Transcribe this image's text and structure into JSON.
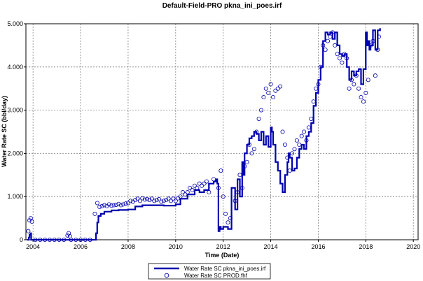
{
  "chart_data": {
    "type": "line",
    "title": "Default-Field-PRO pkna_ini_poes.irf",
    "xlabel": "Time (Date)",
    "ylabel": "Water Rate SC (bbl/day)",
    "xlim": [
      2003.7,
      2020.2
    ],
    "ylim": [
      0,
      5000
    ],
    "x_ticks": [
      2004,
      2006,
      2008,
      2010,
      2012,
      2014,
      2016,
      2018,
      2020
    ],
    "y_ticks": [
      0,
      1000,
      2000,
      3000,
      4000,
      5000
    ],
    "x_tick_labels": [
      "2004",
      "2006",
      "2008",
      "2010",
      "2012",
      "2014",
      "2016",
      "2018",
      "2020"
    ],
    "y_tick_labels": [
      "0",
      "1.000",
      "2.000",
      "3.000",
      "4.000",
      "5.000"
    ],
    "grid": true,
    "legend_position": "bottom-center",
    "series": [
      {
        "name": "Water Rate SC pkna_ini_poes.irf",
        "style": "line",
        "color": "#0000B0",
        "x": [
          2003.75,
          2003.82,
          2003.85,
          2003.9,
          2003.92,
          2004.0,
          2004.2,
          2006.6,
          2006.65,
          2006.7,
          2006.75,
          2006.85,
          2007.0,
          2007.3,
          2007.6,
          2008.0,
          2008.3,
          2008.6,
          2009.0,
          2009.5,
          2010.0,
          2010.2,
          2010.5,
          2010.8,
          2011.0,
          2011.2,
          2011.4,
          2011.6,
          2011.7,
          2011.75,
          2011.8,
          2011.85,
          2011.9,
          2012.0,
          2012.2,
          2012.35,
          2012.5,
          2012.6,
          2012.7,
          2012.8,
          2012.85,
          2012.9,
          2013.0,
          2013.1,
          2013.2,
          2013.3,
          2013.4,
          2013.5,
          2013.6,
          2013.7,
          2013.8,
          2013.9,
          2014.0,
          2014.05,
          2014.1,
          2014.2,
          2014.3,
          2014.4,
          2014.5,
          2014.6,
          2014.7,
          2014.75,
          2014.8,
          2014.9,
          2015.0,
          2015.1,
          2015.2,
          2015.3,
          2015.4,
          2015.5,
          2015.6,
          2015.7,
          2015.8,
          2015.9,
          2016.0,
          2016.1,
          2016.2,
          2016.3,
          2016.4,
          2016.5,
          2016.6,
          2016.7,
          2016.8,
          2016.9,
          2017.0,
          2017.1,
          2017.2,
          2017.3,
          2017.4,
          2017.5,
          2017.6,
          2017.7,
          2017.8,
          2017.9,
          2018.0,
          2018.05,
          2018.1,
          2018.15,
          2018.2,
          2018.3,
          2018.4,
          2018.5,
          2018.6
        ],
        "y": [
          0,
          50,
          120,
          150,
          0,
          0,
          0,
          0,
          150,
          400,
          550,
          600,
          650,
          680,
          690,
          700,
          770,
          800,
          800,
          790,
          820,
          950,
          1050,
          1150,
          1100,
          1150,
          1300,
          1350,
          1400,
          1300,
          200,
          300,
          250,
          300,
          250,
          1200,
          700,
          1400,
          1000,
          1800,
          1500,
          2000,
          2200,
          2350,
          2400,
          2500,
          2450,
          2300,
          2500,
          2200,
          2400,
          2150,
          2600,
          2500,
          2200,
          1800,
          1600,
          1300,
          1100,
          1500,
          1800,
          2000,
          1900,
          1600,
          1650,
          1900,
          2100,
          2200,
          2100,
          2400,
          2500,
          2700,
          3100,
          3400,
          3700,
          4000,
          4600,
          4800,
          4750,
          4800,
          4650,
          4800,
          4500,
          4300,
          4250,
          4300,
          4000,
          3700,
          3900,
          3800,
          3900,
          3950,
          3600,
          3950,
          4800,
          4500,
          4600,
          4400,
          4500,
          4850,
          4400,
          4850,
          4900
        ]
      },
      {
        "name": "Water Rate SC PROD.fhf",
        "style": "markers",
        "color": "#0000B0",
        "x": [
          2003.8,
          2003.85,
          2003.9,
          2003.95,
          2004.1,
          2004.3,
          2004.5,
          2004.7,
          2004.9,
          2005.1,
          2005.3,
          2005.45,
          2005.5,
          2005.55,
          2005.6,
          2005.8,
          2006.0,
          2006.2,
          2006.4,
          2006.6,
          2006.7,
          2006.8,
          2006.9,
          2007.0,
          2007.1,
          2007.2,
          2007.3,
          2007.4,
          2007.5,
          2007.6,
          2007.7,
          2007.8,
          2007.9,
          2008.0,
          2008.1,
          2008.2,
          2008.3,
          2008.4,
          2008.5,
          2008.6,
          2008.7,
          2008.8,
          2008.9,
          2009.0,
          2009.1,
          2009.2,
          2009.3,
          2009.4,
          2009.5,
          2009.6,
          2009.7,
          2009.8,
          2009.9,
          2010.0,
          2010.1,
          2010.2,
          2010.3,
          2010.4,
          2010.5,
          2010.6,
          2010.7,
          2010.8,
          2010.9,
          2011.0,
          2011.1,
          2011.2,
          2011.3,
          2011.4,
          2011.6,
          2011.8,
          2011.9,
          2012.0,
          2012.1,
          2012.2,
          2012.3,
          2012.5,
          2012.6,
          2012.7,
          2012.8,
          2012.9,
          2013.0,
          2013.1,
          2013.2,
          2013.3,
          2013.4,
          2013.5,
          2013.6,
          2013.7,
          2013.8,
          2013.9,
          2014.0,
          2014.1,
          2014.2,
          2014.3,
          2014.4,
          2014.5,
          2014.6,
          2014.7,
          2014.8,
          2014.9,
          2015.0,
          2015.1,
          2015.2,
          2015.3,
          2015.4,
          2015.5,
          2015.6,
          2015.7,
          2015.8,
          2015.9,
          2016.0,
          2016.1,
          2016.2,
          2016.3,
          2016.4,
          2016.5,
          2016.6,
          2016.7,
          2016.8,
          2016.9,
          2017.0,
          2017.1,
          2017.2,
          2017.3,
          2017.4,
          2017.5,
          2017.6,
          2017.7,
          2017.8,
          2017.9,
          2018.0,
          2018.1,
          2018.2,
          2018.3,
          2018.4,
          2018.5,
          2018.55
        ],
        "y": [
          200,
          450,
          500,
          420,
          0,
          0,
          0,
          0,
          0,
          0,
          0,
          100,
          150,
          80,
          0,
          0,
          0,
          0,
          0,
          600,
          850,
          760,
          780,
          800,
          780,
          820,
          790,
          800,
          810,
          830,
          800,
          820,
          840,
          850,
          900,
          880,
          920,
          950,
          900,
          960,
          930,
          940,
          920,
          950,
          900,
          920,
          940,
          880,
          900,
          920,
          950,
          900,
          950,
          900,
          960,
          1000,
          1100,
          1050,
          1100,
          1200,
          1150,
          1250,
          1200,
          1300,
          1250,
          1300,
          1350,
          1100,
          1400,
          1200,
          1600,
          1000,
          600,
          400,
          500,
          900,
          1100,
          1500,
          1200,
          1700,
          1800,
          2200,
          2000,
          2100,
          2500,
          2800,
          3000,
          3300,
          3500,
          3400,
          3600,
          3300,
          3450,
          3500,
          3550,
          2500,
          2200,
          1900,
          1600,
          2000,
          2100,
          2300,
          2200,
          2400,
          2500,
          2300,
          2600,
          2800,
          3200,
          3500,
          3600,
          4000,
          4500,
          4400,
          4600,
          4700,
          4800,
          4500,
          4300,
          4200,
          4100,
          4300,
          4200,
          3500,
          3700,
          3600,
          3800,
          3500,
          3300,
          3200,
          3400,
          3700,
          4500,
          4600,
          3800,
          4400,
          4700
        ]
      }
    ]
  }
}
